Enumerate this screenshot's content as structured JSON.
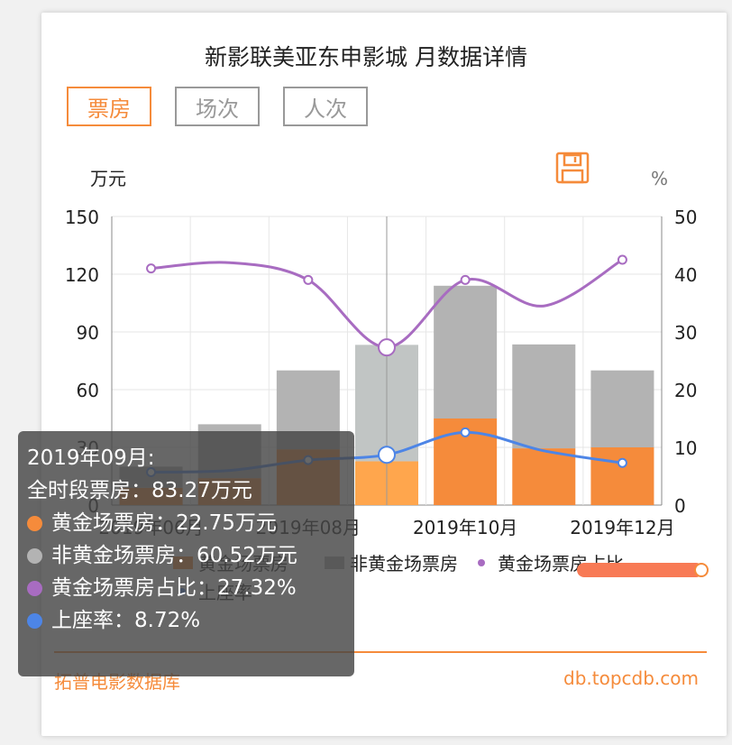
{
  "page": {
    "title": "新影联美亚东申影城 月数据详情",
    "tabs": [
      {
        "label": "票房",
        "active": true
      },
      {
        "label": "场次",
        "active": false
      },
      {
        "label": "人次",
        "active": false
      }
    ],
    "footer": {
      "left": "拓普电影数据库",
      "right": "db.topcdb.com"
    },
    "save_icon": "save-icon",
    "accent_color": "#f58b3b"
  },
  "chart_data": {
    "type": "bar",
    "x_ticks": [
      "2019年06月",
      "2019年08月",
      "2019年10月",
      "2019年12月"
    ],
    "y_left": {
      "label": "万元",
      "range": [
        0,
        150
      ],
      "ticks": [
        "150",
        "120",
        "90",
        "60",
        "30",
        "0"
      ]
    },
    "y_right": {
      "label": "%",
      "range": [
        0,
        50
      ],
      "ticks": [
        "50",
        "40",
        "30",
        "20",
        "10",
        "0"
      ]
    },
    "series": [
      {
        "name": "黄金场票房",
        "color": "#f58b3b",
        "values": [
          9,
          14,
          29,
          22.75,
          45,
          29.5,
          30
        ]
      },
      {
        "name": "非黄金场票房",
        "color": "#b3b3b3",
        "values": [
          11,
          28,
          41,
          60.52,
          69,
          54,
          40
        ]
      },
      {
        "name": "黄金场票房占比",
        "color": "#a86cc1",
        "values": [
          41,
          42,
          39,
          27.32,
          39,
          34.5,
          42.5
        ]
      },
      {
        "name": "上座率",
        "color": "#4d85e6",
        "values": [
          5.7,
          6,
          7.8,
          8.72,
          12.6,
          9.4,
          7.3
        ]
      }
    ],
    "highlight_index": 3,
    "legend_position": "bottom"
  },
  "tooltip": {
    "title": "2019年09月:",
    "total": "全时段票房：83.27万元",
    "rows": [
      {
        "text": "黄金场票房：22.75万元",
        "color": "#f58b3b"
      },
      {
        "text": "非黄金场票房：60.52万元",
        "color": "#b3b3b3"
      },
      {
        "text": "黄金场票房占比：27.32%",
        "color": "#a86cc1"
      },
      {
        "text": "上座率：8.72%",
        "color": "#4d85e6"
      }
    ]
  }
}
